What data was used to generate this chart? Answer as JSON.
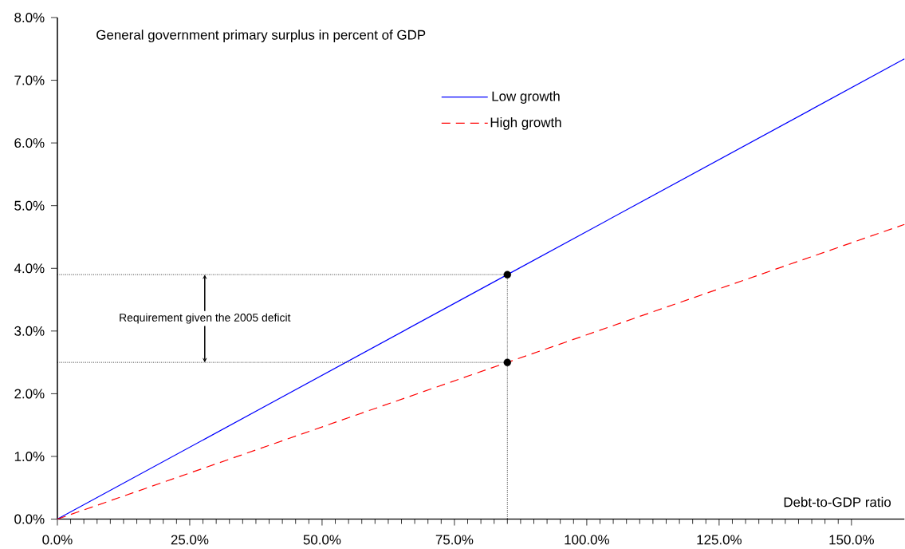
{
  "chart_data": {
    "type": "line",
    "title": "General government primary surplus in percent of GDP",
    "xlabel": "Debt-to-GDP ratio",
    "xlim": [
      0,
      160
    ],
    "ylim": [
      0,
      8
    ],
    "xticks": [
      {
        "value": 0,
        "label": "0.0%"
      },
      {
        "value": 25,
        "label": "25.0%"
      },
      {
        "value": 50,
        "label": "50.0%"
      },
      {
        "value": 75,
        "label": "75.0%"
      },
      {
        "value": 100,
        "label": "100.0%"
      },
      {
        "value": 125,
        "label": "125.0%"
      },
      {
        "value": 150,
        "label": "150.0%"
      }
    ],
    "yticks": [
      {
        "value": 0,
        "label": "0.0%"
      },
      {
        "value": 1,
        "label": "1.0%"
      },
      {
        "value": 2,
        "label": "2.0%"
      },
      {
        "value": 3,
        "label": "3.0%"
      },
      {
        "value": 4,
        "label": "4.0%"
      },
      {
        "value": 5,
        "label": "5.0%"
      },
      {
        "value": 6,
        "label": "6.0%"
      },
      {
        "value": 7,
        "label": "7.0%"
      },
      {
        "value": 8,
        "label": "8.0%"
      }
    ],
    "series": [
      {
        "name": "Low growth",
        "color": "#0000ff",
        "x": [
          0,
          85,
          160
        ],
        "values": [
          0,
          3.9,
          7.34
        ],
        "line_style": "solid"
      },
      {
        "name": "High growth",
        "color": "#ff0000",
        "x": [
          0,
          85,
          160
        ],
        "values": [
          0,
          2.5,
          4.7
        ],
        "line_style": "dashed"
      },
      {
        "color": "#000000",
        "x": [
          0,
          85,
          85
        ],
        "values": [
          3.9,
          3.9,
          0
        ],
        "line_style": "dotted"
      },
      {
        "color": "#000000",
        "x": [
          0,
          85
        ],
        "values": [
          2.5,
          2.5
        ],
        "line_style": "dotted"
      },
      {
        "type": "scatter",
        "color": "#000000",
        "x": [
          85,
          85
        ],
        "values": [
          3.9,
          2.5
        ],
        "marker": "circle"
      }
    ],
    "annotations": [
      "Requirement given the 2005 deficit"
    ],
    "legend": "top",
    "grid": false
  }
}
